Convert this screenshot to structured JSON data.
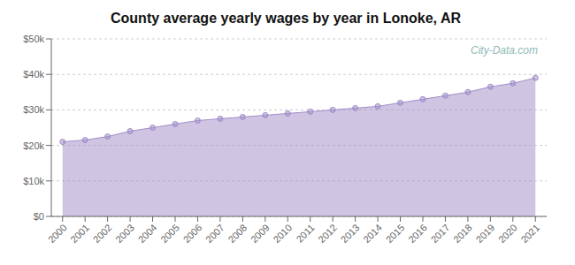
{
  "chart_data": {
    "type": "area",
    "title": "County average yearly wages by year in Lonoke, AR",
    "annotation": "City-Data.com",
    "x": [
      2000,
      2001,
      2002,
      2003,
      2004,
      2005,
      2006,
      2007,
      2008,
      2009,
      2010,
      2011,
      2012,
      2013,
      2014,
      2015,
      2016,
      2017,
      2018,
      2019,
      2020,
      2021
    ],
    "values": [
      21000,
      21500,
      22500,
      24000,
      25000,
      26000,
      27000,
      27500,
      28000,
      28500,
      29000,
      29500,
      30000,
      30500,
      31000,
      32000,
      33000,
      34000,
      35000,
      36500,
      37500,
      39000
    ],
    "color": "#A08CC8",
    "marker": "circle",
    "xlim": [
      1999.5,
      2021.5
    ],
    "xticks": [
      2000,
      2001,
      2002,
      2003,
      2004,
      2005,
      2006,
      2007,
      2008,
      2009,
      2010,
      2011,
      2012,
      2013,
      2014,
      2015,
      2016,
      2017,
      2018,
      2019,
      2020,
      2021
    ],
    "ylim": [
      0,
      50000
    ],
    "yticks": [
      {
        "value": 0,
        "label": "$0"
      },
      {
        "value": 10000,
        "label": "$10k"
      },
      {
        "value": 20000,
        "label": "$20k"
      },
      {
        "value": 30000,
        "label": "$30k"
      },
      {
        "value": 40000,
        "label": "$40k"
      },
      {
        "value": 50000,
        "label": "$50k"
      }
    ],
    "grid": true
  }
}
